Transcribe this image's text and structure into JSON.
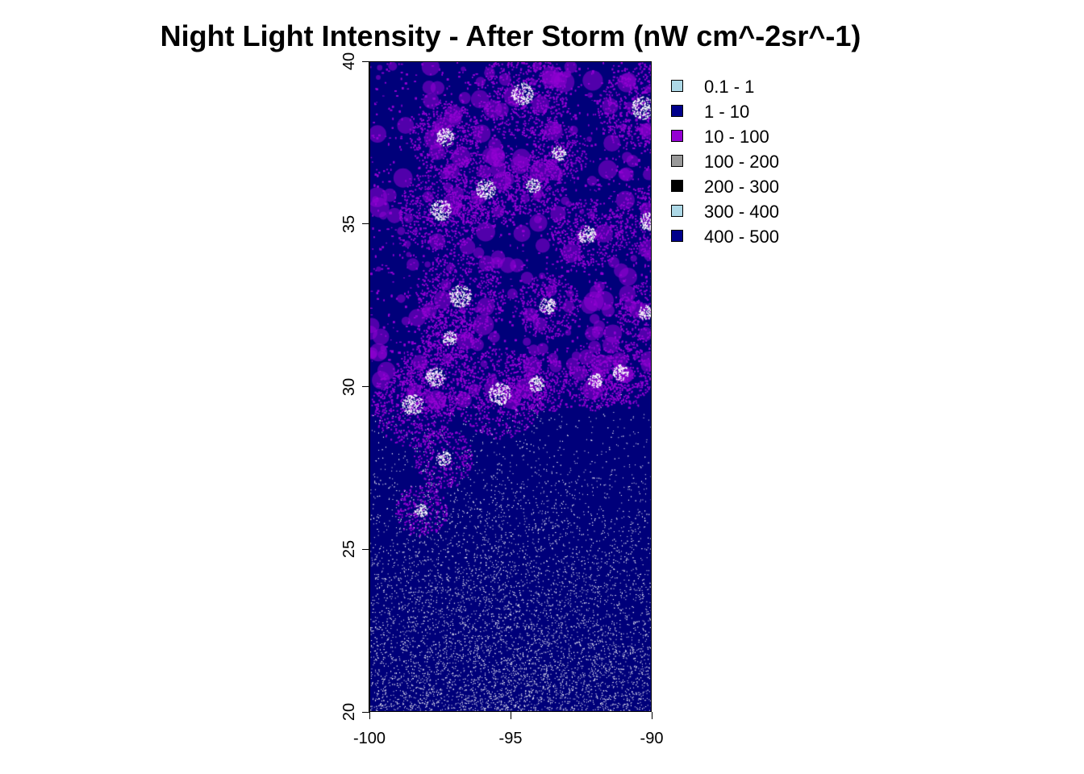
{
  "map": {
    "title": "Night Light Intensity - After Storm (nW cm^-2sr^-1)",
    "x_axis": {
      "range": [
        -100,
        -90
      ],
      "ticks": [
        {
          "value": -100,
          "label": "-100"
        },
        {
          "value": -95,
          "label": "-95"
        },
        {
          "value": -90,
          "label": "-90"
        }
      ]
    },
    "y_axis": {
      "range": [
        20,
        40
      ],
      "ticks": [
        {
          "value": 20,
          "label": "20"
        },
        {
          "value": 25,
          "label": "25"
        },
        {
          "value": 30,
          "label": "30"
        },
        {
          "value": 35,
          "label": "35"
        },
        {
          "value": 40,
          "label": "40"
        }
      ]
    },
    "legend": [
      {
        "label": "0.1 - 1",
        "color": "#add8e6"
      },
      {
        "label": "1 - 10",
        "color": "#00008b"
      },
      {
        "label": "10 - 100",
        "color": "#9400d3"
      },
      {
        "label": "100 - 200",
        "color": "#999999"
      },
      {
        "label": "200 - 300",
        "color": "#000000"
      },
      {
        "label": "300 - 400",
        "color": "#add8e6"
      },
      {
        "label": "400 - 500",
        "color": "#00008b"
      }
    ],
    "colors": {
      "background": "#00007a",
      "lit_area": "#9400d3",
      "bright_core": "#ffffff"
    },
    "bright_centers": [
      {
        "lon": -94.6,
        "lat": 39.05,
        "weight": 1.0
      },
      {
        "lon": -90.3,
        "lat": 38.6,
        "weight": 1.0
      },
      {
        "lon": -97.5,
        "lat": 35.45,
        "weight": 0.9
      },
      {
        "lon": -95.9,
        "lat": 36.1,
        "weight": 0.8
      },
      {
        "lon": -96.8,
        "lat": 32.8,
        "weight": 1.0
      },
      {
        "lon": -95.4,
        "lat": 29.8,
        "weight": 1.0
      },
      {
        "lon": -98.5,
        "lat": 29.45,
        "weight": 0.9
      },
      {
        "lon": -97.7,
        "lat": 30.3,
        "weight": 0.8
      },
      {
        "lon": -92.3,
        "lat": 34.7,
        "weight": 0.7
      },
      {
        "lon": -90.1,
        "lat": 35.1,
        "weight": 0.7
      },
      {
        "lon": -97.35,
        "lat": 37.7,
        "weight": 0.7
      },
      {
        "lon": -91.1,
        "lat": 30.45,
        "weight": 0.6
      },
      {
        "lon": -93.7,
        "lat": 32.5,
        "weight": 0.6
      },
      {
        "lon": -94.1,
        "lat": 30.1,
        "weight": 0.6
      },
      {
        "lon": -94.2,
        "lat": 36.2,
        "weight": 0.5
      },
      {
        "lon": -93.3,
        "lat": 37.2,
        "weight": 0.5
      },
      {
        "lon": -97.2,
        "lat": 31.5,
        "weight": 0.5
      },
      {
        "lon": -97.4,
        "lat": 27.8,
        "weight": 0.5
      },
      {
        "lon": -92.0,
        "lat": 30.2,
        "weight": 0.5
      },
      {
        "lon": -90.2,
        "lat": 32.3,
        "weight": 0.5
      },
      {
        "lon": -98.2,
        "lat": 26.2,
        "weight": 0.4
      }
    ]
  }
}
